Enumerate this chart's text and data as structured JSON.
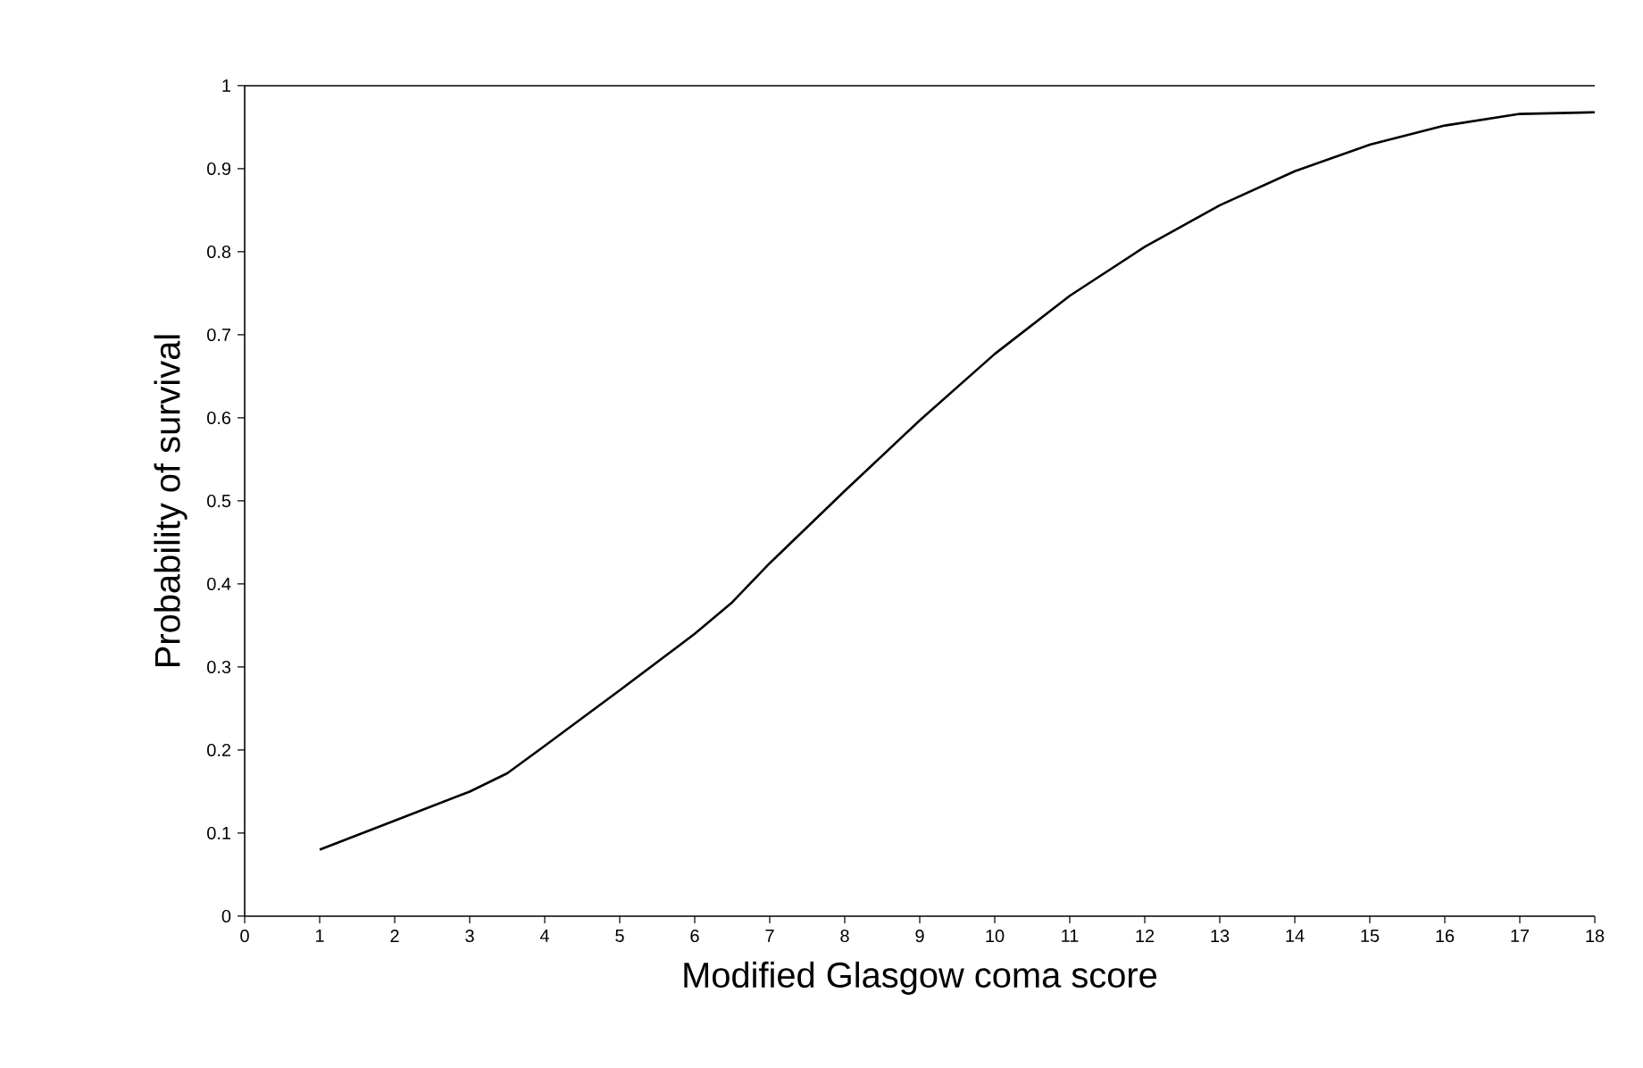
{
  "chart_data": {
    "type": "line",
    "xlabel": "Modified Glasgow coma score",
    "ylabel": "Probability of survival",
    "x": [
      1,
      2,
      3,
      3.5,
      4,
      5,
      6,
      6.5,
      7,
      8,
      9,
      10,
      11,
      12,
      13,
      14,
      15,
      16,
      17,
      18
    ],
    "series": [
      {
        "color": "#000000",
        "values": [
          0.08,
          0.115,
          0.15,
          0.172,
          0.205,
          0.272,
          0.34,
          0.378,
          0.425,
          0.512,
          0.597,
          0.677,
          0.747,
          0.806,
          0.856,
          0.897,
          0.929,
          0.952,
          0.966,
          0.968
        ]
      }
    ],
    "xlim": [
      0,
      18
    ],
    "ylim": [
      0,
      1
    ],
    "xticks": [
      0,
      1,
      2,
      3,
      4,
      5,
      6,
      7,
      8,
      9,
      10,
      11,
      12,
      13,
      14,
      15,
      16,
      17,
      18
    ],
    "yticks": [
      0,
      0.1,
      0.2,
      0.3,
      0.4,
      0.5,
      0.6,
      0.7,
      0.8,
      0.9,
      1
    ],
    "marker": "none",
    "line_style": "solid"
  }
}
